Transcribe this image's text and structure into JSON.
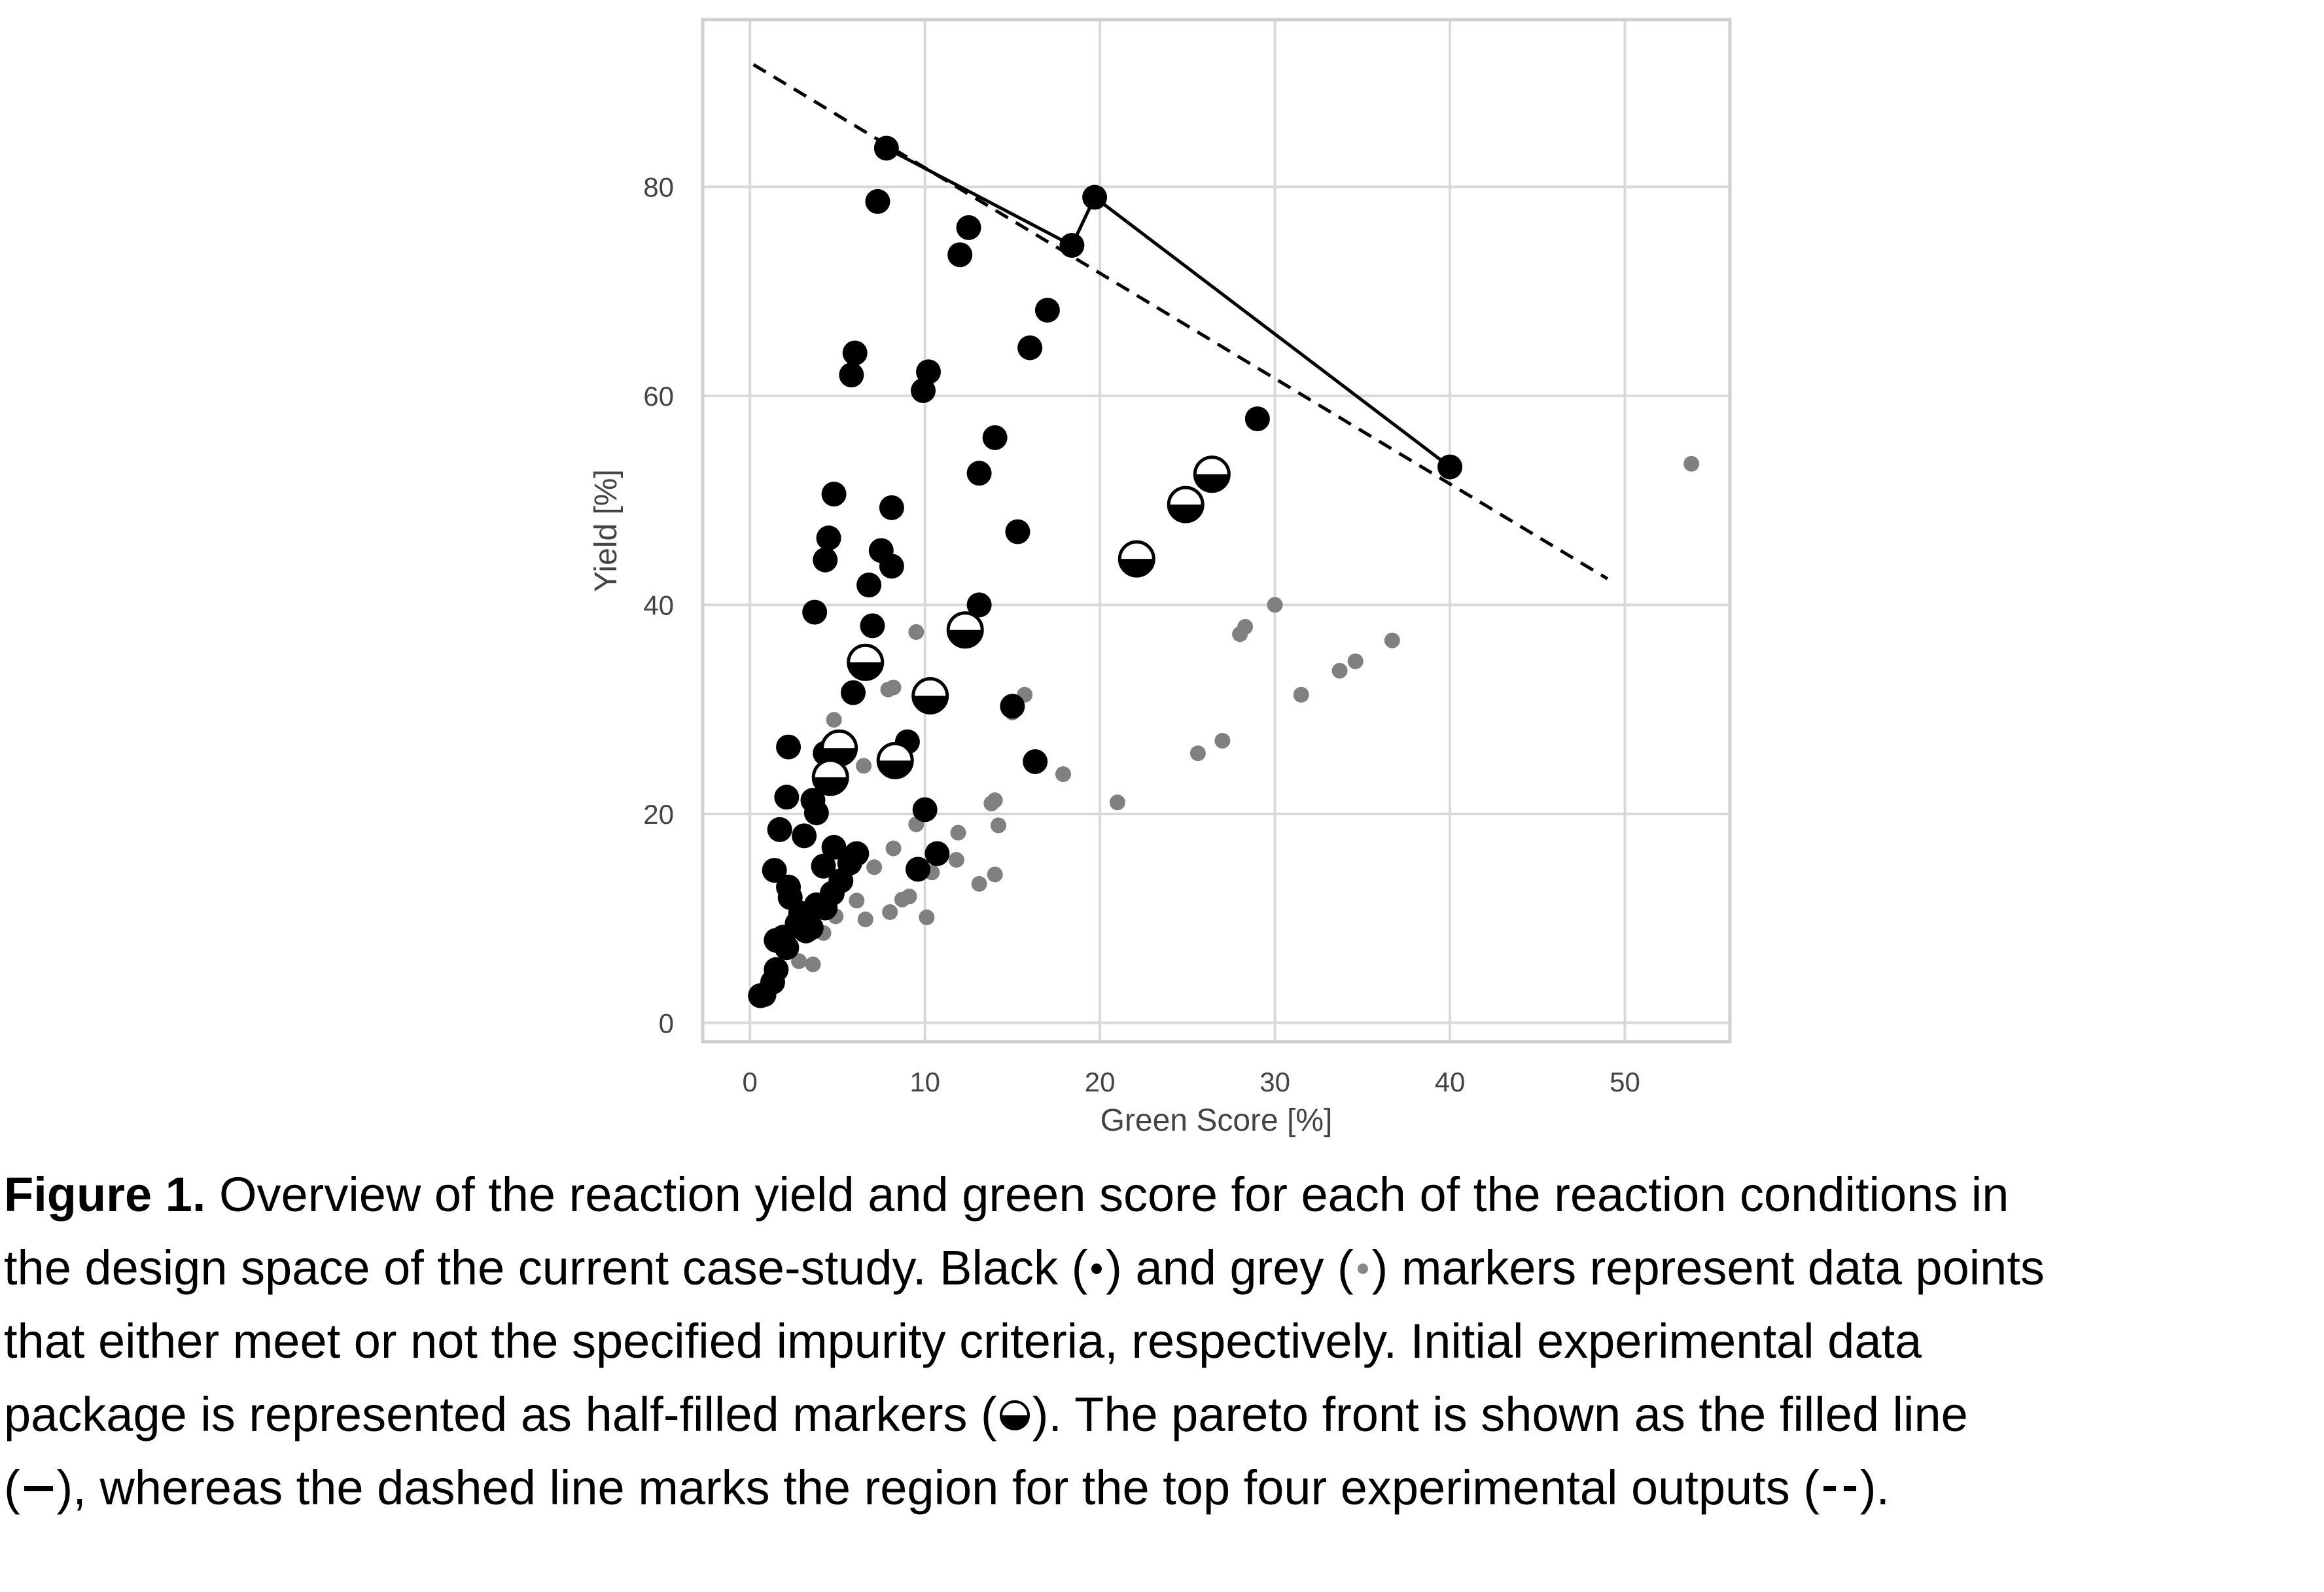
{
  "chart_data": {
    "type": "scatter",
    "xlabel": "Green Score [%]",
    "ylabel": "Yield [%]",
    "xlim": [
      -2.7,
      56
    ],
    "ylim": [
      -1.8,
      96
    ],
    "xticks": [
      0,
      10,
      20,
      30,
      40,
      50
    ],
    "yticks": [
      0,
      20,
      40,
      60,
      80
    ],
    "grid": true,
    "series": [
      {
        "marker": "grey-small",
        "color": "#808080",
        "points": [
          [
            53.8,
            53.5
          ],
          [
            30,
            40
          ],
          [
            28.3,
            37.9
          ],
          [
            28.0,
            37.2
          ],
          [
            36.7,
            36.6
          ],
          [
            34.6,
            34.6
          ],
          [
            33.7,
            33.7
          ],
          [
            31.5,
            31.4
          ],
          [
            27.0,
            27.0
          ],
          [
            25.6,
            25.8
          ],
          [
            21.0,
            21.1
          ],
          [
            17.9,
            23.8
          ],
          [
            15.7,
            31.4
          ],
          [
            15.0,
            29.7
          ],
          [
            14.0,
            21.3
          ],
          [
            13.8,
            21.0
          ],
          [
            14.2,
            18.9
          ],
          [
            14.0,
            14.2
          ],
          [
            13.1,
            13.3
          ],
          [
            11.9,
            18.2
          ],
          [
            11.8,
            15.6
          ],
          [
            10.4,
            14.4
          ],
          [
            10.1,
            10.1
          ],
          [
            8.2,
            32.1
          ],
          [
            7.9,
            31.9
          ],
          [
            9.5,
            37.4
          ],
          [
            9.5,
            19.0
          ],
          [
            9.1,
            12.1
          ],
          [
            8.7,
            11.8
          ],
          [
            8.2,
            16.7
          ],
          [
            8.0,
            10.6
          ],
          [
            7.1,
            14.9
          ],
          [
            6.5,
            24.6
          ],
          [
            6.6,
            9.9
          ],
          [
            6.1,
            11.7
          ],
          [
            4.8,
            29.0
          ],
          [
            4.9,
            10.2
          ],
          [
            4.2,
            8.6
          ],
          [
            3.6,
            5.6
          ],
          [
            2.8,
            5.9
          ],
          [
            1.5,
            3.7
          ],
          [
            13.2,
            52.3
          ]
        ]
      },
      {
        "marker": "black",
        "color": "#000000",
        "points": [
          [
            7.8,
            83.7
          ],
          [
            7.3,
            78.6
          ],
          [
            12.5,
            76.1
          ],
          [
            12.0,
            73.5
          ],
          [
            18.4,
            74.4
          ],
          [
            19.7,
            79.0
          ],
          [
            17.0,
            68.2
          ],
          [
            16.0,
            64.6
          ],
          [
            6.0,
            64.1
          ],
          [
            5.8,
            62.0
          ],
          [
            10.2,
            62.3
          ],
          [
            9.9,
            60.5
          ],
          [
            14.0,
            56.0
          ],
          [
            13.1,
            52.6
          ],
          [
            15.3,
            47.0
          ],
          [
            4.8,
            50.6
          ],
          [
            8.1,
            49.3
          ],
          [
            4.5,
            46.4
          ],
          [
            4.3,
            44.3
          ],
          [
            7.5,
            45.2
          ],
          [
            8.1,
            43.7
          ],
          [
            6.8,
            41.9
          ],
          [
            13.1,
            40.0
          ],
          [
            3.7,
            39.3
          ],
          [
            7.0,
            38.0
          ],
          [
            5.9,
            31.6
          ],
          [
            15.0,
            30.3
          ],
          [
            9.0,
            26.9
          ],
          [
            16.3,
            25.0
          ],
          [
            4.3,
            25.8
          ],
          [
            2.2,
            26.4
          ],
          [
            2.1,
            21.6
          ],
          [
            3.6,
            21.3
          ],
          [
            3.8,
            20.1
          ],
          [
            10.0,
            20.4
          ],
          [
            1.7,
            18.5
          ],
          [
            3.1,
            17.9
          ],
          [
            4.8,
            16.8
          ],
          [
            6.1,
            16.2
          ],
          [
            10.7,
            16.2
          ],
          [
            5.7,
            15.3
          ],
          [
            4.2,
            15.0
          ],
          [
            1.4,
            14.6
          ],
          [
            9.6,
            14.7
          ],
          [
            5.2,
            13.6
          ],
          [
            2.2,
            13.0
          ],
          [
            4.7,
            12.4
          ],
          [
            2.3,
            12.0
          ],
          [
            3.8,
            11.3
          ],
          [
            4.3,
            11.0
          ],
          [
            2.9,
            10.5
          ],
          [
            2.7,
            9.5
          ],
          [
            3.5,
            9.1
          ],
          [
            3.2,
            8.8
          ],
          [
            1.9,
            8.2
          ],
          [
            1.5,
            7.9
          ],
          [
            2.1,
            7.2
          ],
          [
            1.5,
            5.1
          ],
          [
            1.3,
            3.9
          ],
          [
            0.8,
            2.7
          ],
          [
            0.6,
            2.6
          ],
          [
            29.0,
            57.8
          ],
          [
            40.0,
            53.2
          ]
        ]
      },
      {
        "marker": "half-filled",
        "color": "#000000",
        "points": [
          [
            26.4,
            52.5
          ],
          [
            24.9,
            49.6
          ],
          [
            22.1,
            44.4
          ],
          [
            12.3,
            37.6
          ],
          [
            6.6,
            34.5
          ],
          [
            10.3,
            31.3
          ],
          [
            5.1,
            26.3
          ],
          [
            8.3,
            25.1
          ],
          [
            4.6,
            23.5
          ]
        ]
      }
    ],
    "pareto_front": [
      [
        7.8,
        83.7
      ],
      [
        18.4,
        74.4
      ],
      [
        19.7,
        79.0
      ],
      [
        40.0,
        53.2
      ]
    ],
    "dashed_line": [
      [
        0.2,
        91.7
      ],
      [
        49.0,
        42.5
      ]
    ]
  },
  "caption": {
    "figure_label": "Figure 1.",
    "line1_text": "Overview of the reaction yield and green score for each of the reaction conditions in",
    "line2_a": "the design space of the current case-study. Black (",
    "line2_b": ") and grey (",
    "line2_c": ") markers represent data points",
    "line3": "that either meet or not the specified impurity criteria, respectively. Initial experimental data",
    "line4_a": "package is represented as half-filled markers (",
    "line4_b": "). The pareto front is shown as the filled line",
    "line5_a": "(",
    "line5_b": "), whereas the dashed line marks the region for the top four experimental outputs (",
    "line5_c": ")."
  }
}
